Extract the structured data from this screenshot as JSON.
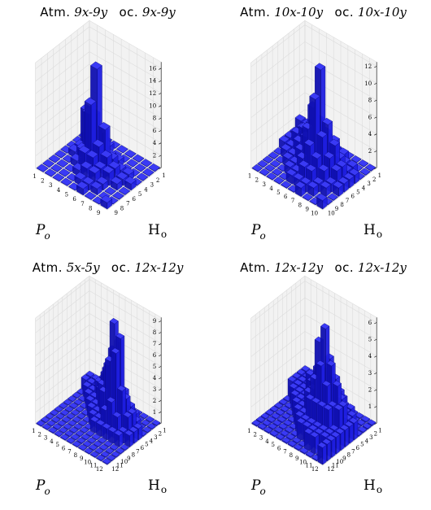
{
  "colors": {
    "bar": "#1f1fe0",
    "grid": "#dcdcdc",
    "pane": "#f2f2f2"
  },
  "chart_data": [
    {
      "type": "bar3d",
      "title": {
        "left_label": "Atm.",
        "left_math": "9x-9y",
        "right_label": "oc.",
        "right_math": "9x-9y"
      },
      "xlabel_main": "P",
      "xlabel_sub": "o",
      "ylabel_main": "H",
      "ylabel_sub": "o",
      "n": 9,
      "z_ticks": [
        0,
        2,
        4,
        6,
        8,
        10,
        12,
        14,
        16
      ],
      "zlim": [
        0,
        17
      ],
      "heights": [
        [
          2,
          0,
          0,
          0,
          0,
          0,
          0,
          0,
          0
        ],
        [
          1,
          4,
          6,
          1,
          1,
          0,
          0,
          0,
          0
        ],
        [
          0,
          2,
          6,
          7,
          2,
          1,
          0,
          0,
          0
        ],
        [
          0,
          1,
          4,
          15,
          10,
          3,
          1,
          0,
          0
        ],
        [
          0,
          0,
          1,
          6,
          4,
          3,
          2,
          1,
          0
        ],
        [
          0,
          0,
          1,
          2,
          3,
          2,
          2,
          1,
          1
        ],
        [
          0,
          0,
          0,
          1,
          2,
          2,
          1,
          1,
          0
        ],
        [
          0,
          0,
          0,
          1,
          1,
          1,
          0,
          0,
          0
        ],
        [
          0,
          0,
          0,
          0,
          1,
          0,
          0,
          0,
          1
        ]
      ]
    },
    {
      "type": "bar3d",
      "title": {
        "left_label": "Atm.",
        "left_math": "10x-10y",
        "right_label": "oc.",
        "right_math": "10x-10y"
      },
      "xlabel_main": "P",
      "xlabel_sub": "o",
      "ylabel_main": "H",
      "ylabel_sub": "o",
      "n": 10,
      "z_ticks": [
        0,
        2,
        4,
        6,
        8,
        10,
        12
      ],
      "zlim": [
        0,
        12.5
      ],
      "heights": [
        [
          1,
          2,
          1,
          1,
          1,
          0,
          0,
          0,
          0,
          0
        ],
        [
          1,
          2,
          2,
          2,
          1,
          1,
          0,
          0,
          0,
          0
        ],
        [
          1,
          2,
          2,
          3,
          2,
          1,
          1,
          0,
          0,
          0
        ],
        [
          1,
          1,
          3,
          4,
          3,
          2,
          1,
          1,
          0,
          0
        ],
        [
          1,
          1,
          2,
          5,
          7,
          5,
          2,
          1,
          1,
          0
        ],
        [
          0,
          1,
          2,
          4,
          12,
          9,
          4,
          2,
          1,
          0
        ],
        [
          0,
          1,
          1,
          3,
          6,
          5,
          3,
          2,
          1,
          1
        ],
        [
          0,
          0,
          1,
          2,
          4,
          3,
          2,
          1,
          1,
          0
        ],
        [
          0,
          0,
          1,
          1,
          2,
          2,
          1,
          1,
          0,
          0
        ],
        [
          0,
          0,
          0,
          1,
          1,
          1,
          1,
          0,
          0,
          1
        ]
      ]
    },
    {
      "type": "bar3d",
      "title": {
        "left_label": "Atm.",
        "left_math": "5x-5y",
        "right_label": "oc.",
        "right_math": "12x-12y"
      },
      "xlabel_main": "P",
      "xlabel_sub": "o",
      "ylabel_main": "H",
      "ylabel_sub": "o",
      "n": 12,
      "z_ticks": [
        0,
        1,
        2,
        3,
        4,
        5,
        6,
        7,
        8,
        9
      ],
      "zlim": [
        0,
        9.3
      ],
      "heights": [
        [
          1,
          1,
          0,
          0,
          0,
          0,
          0,
          0,
          0,
          0,
          0,
          0
        ],
        [
          1,
          1,
          1,
          0,
          0,
          0,
          0,
          0,
          0,
          0,
          0,
          0
        ],
        [
          1,
          1,
          1,
          1,
          0,
          0,
          0,
          0,
          0,
          0,
          0,
          0
        ],
        [
          1,
          2,
          2,
          1,
          1,
          0,
          0,
          0,
          0,
          0,
          0,
          0
        ],
        [
          1,
          2,
          3,
          2,
          1,
          1,
          0,
          0,
          0,
          0,
          0,
          0
        ],
        [
          0,
          1,
          2,
          4,
          3,
          1,
          1,
          0,
          0,
          0,
          0,
          0
        ],
        [
          0,
          1,
          2,
          6,
          5,
          3,
          1,
          1,
          0,
          0,
          0,
          0
        ],
        [
          0,
          0,
          2,
          7,
          9,
          6,
          2,
          1,
          0,
          0,
          0,
          0
        ],
        [
          0,
          0,
          1,
          3,
          8,
          7,
          3,
          1,
          0,
          0,
          0,
          0
        ],
        [
          0,
          0,
          1,
          2,
          3,
          4,
          2,
          1,
          0,
          0,
          0,
          0
        ],
        [
          0,
          0,
          0,
          1,
          2,
          2,
          1,
          1,
          0,
          0,
          0,
          0
        ],
        [
          0,
          0,
          0,
          0,
          1,
          1,
          1,
          0,
          0,
          0,
          0,
          0
        ]
      ]
    },
    {
      "type": "bar3d",
      "title": {
        "left_label": "Atm.",
        "left_math": "12x-12y",
        "right_label": "oc.",
        "right_math": "12x-12y"
      },
      "xlabel_main": "P",
      "xlabel_sub": "o",
      "ylabel_main": "H",
      "ylabel_sub": "o",
      "n": 12,
      "z_ticks": [
        0,
        1,
        2,
        3,
        4,
        5,
        6
      ],
      "zlim": [
        0,
        6.3
      ],
      "heights": [
        [
          1,
          1,
          1,
          1,
          0,
          0,
          0,
          0,
          0,
          0,
          0,
          0
        ],
        [
          1,
          1,
          1,
          1,
          1,
          0,
          0,
          0,
          0,
          0,
          0,
          0
        ],
        [
          1,
          1,
          1,
          1,
          1,
          1,
          0,
          0,
          0,
          0,
          0,
          0
        ],
        [
          1,
          1,
          1,
          2,
          1,
          1,
          1,
          0,
          0,
          0,
          0,
          0
        ],
        [
          1,
          1,
          2,
          2,
          2,
          1,
          1,
          1,
          0,
          0,
          0,
          0
        ],
        [
          0,
          1,
          2,
          2,
          3,
          2,
          2,
          1,
          1,
          0,
          0,
          0
        ],
        [
          0,
          1,
          1,
          2,
          3,
          5,
          3,
          2,
          1,
          1,
          0,
          0
        ],
        [
          0,
          1,
          1,
          2,
          4,
          6,
          4,
          2,
          1,
          1,
          0,
          0
        ],
        [
          0,
          0,
          1,
          2,
          3,
          4,
          3,
          2,
          1,
          1,
          1,
          0
        ],
        [
          0,
          0,
          1,
          1,
          2,
          3,
          2,
          2,
          1,
          1,
          1,
          0
        ],
        [
          0,
          0,
          0,
          1,
          1,
          2,
          2,
          1,
          1,
          1,
          0,
          0
        ],
        [
          0,
          0,
          0,
          0,
          1,
          1,
          1,
          1,
          1,
          1,
          1,
          1
        ]
      ]
    }
  ]
}
